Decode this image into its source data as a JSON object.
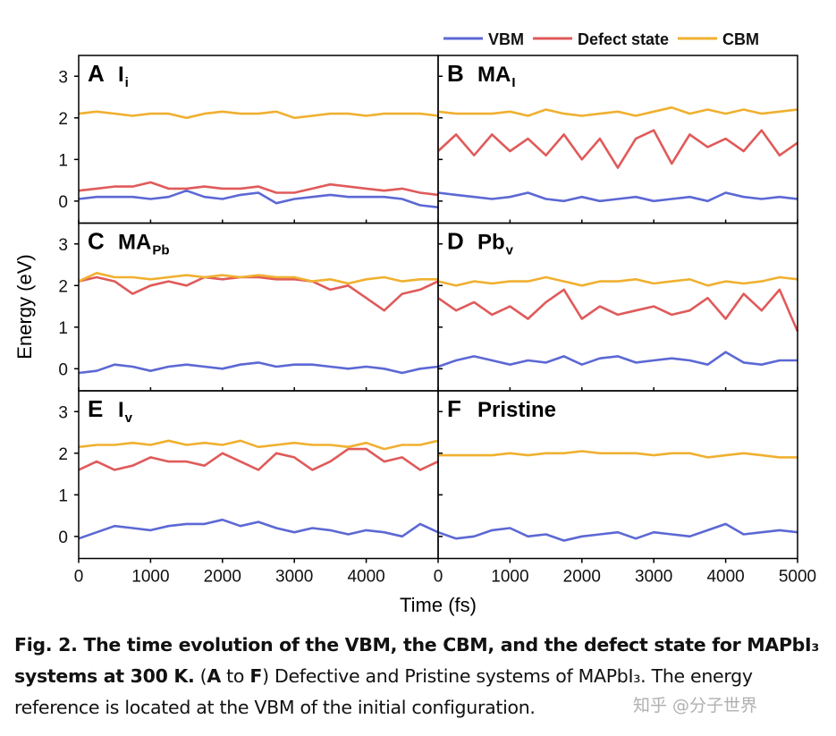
{
  "chart_data": [
    {
      "type": "line",
      "panel": "A",
      "title": "I",
      "subscript": "i",
      "x": [
        0,
        250,
        500,
        750,
        1000,
        1250,
        1500,
        1750,
        2000,
        2250,
        2500,
        2750,
        3000,
        3250,
        3500,
        3750,
        4000,
        4250,
        4500,
        4750,
        5000
      ],
      "xlim": [
        0,
        5000
      ],
      "xticks": [
        0,
        1000,
        2000,
        3000,
        4000
      ],
      "ylim": [
        -0.53,
        3.5
      ],
      "yticks": [
        0,
        1,
        2,
        3
      ],
      "series": [
        {
          "name": "VBM",
          "color": "#5c68d4",
          "values": [
            0.05,
            0.1,
            0.1,
            0.1,
            0.05,
            0.1,
            0.25,
            0.1,
            0.05,
            0.15,
            0.2,
            -0.05,
            0.05,
            0.1,
            0.15,
            0.1,
            0.1,
            0.1,
            0.05,
            -0.1,
            -0.15
          ]
        },
        {
          "name": "Defect state",
          "color": "#e05a5a",
          "values": [
            0.25,
            0.3,
            0.35,
            0.35,
            0.45,
            0.3,
            0.3,
            0.35,
            0.3,
            0.3,
            0.35,
            0.2,
            0.2,
            0.3,
            0.4,
            0.35,
            0.3,
            0.25,
            0.3,
            0.2,
            0.15
          ]
        },
        {
          "name": "CBM",
          "color": "#f0b030",
          "values": [
            2.1,
            2.15,
            2.1,
            2.05,
            2.1,
            2.1,
            2.0,
            2.1,
            2.15,
            2.1,
            2.1,
            2.15,
            2.0,
            2.05,
            2.1,
            2.1,
            2.05,
            2.1,
            2.1,
            2.1,
            2.05
          ]
        }
      ]
    },
    {
      "type": "line",
      "panel": "B",
      "title": "MA",
      "subscript": "I",
      "x": [
        0,
        250,
        500,
        750,
        1000,
        1250,
        1500,
        1750,
        2000,
        2250,
        2500,
        2750,
        3000,
        3250,
        3500,
        3750,
        4000,
        4250,
        4500,
        4750,
        5000
      ],
      "xlim": [
        0,
        5000
      ],
      "xticks": [
        0,
        1000,
        2000,
        3000,
        4000,
        5000
      ],
      "ylim": [
        -0.53,
        3.5
      ],
      "yticks": [
        0,
        1,
        2,
        3
      ],
      "series": [
        {
          "name": "VBM",
          "color": "#5c68d4",
          "values": [
            0.2,
            0.15,
            0.1,
            0.05,
            0.1,
            0.2,
            0.05,
            0.0,
            0.1,
            0.0,
            0.05,
            0.1,
            0.0,
            0.05,
            0.1,
            0.0,
            0.2,
            0.1,
            0.05,
            0.1,
            0.05
          ]
        },
        {
          "name": "Defect state",
          "color": "#e05a5a",
          "values": [
            1.2,
            1.6,
            1.1,
            1.6,
            1.2,
            1.5,
            1.1,
            1.6,
            1.0,
            1.5,
            0.8,
            1.5,
            1.7,
            0.9,
            1.6,
            1.3,
            1.5,
            1.2,
            1.7,
            1.1,
            1.4
          ]
        },
        {
          "name": "CBM",
          "color": "#f0b030",
          "values": [
            2.15,
            2.1,
            2.1,
            2.1,
            2.15,
            2.05,
            2.2,
            2.1,
            2.05,
            2.1,
            2.15,
            2.05,
            2.15,
            2.25,
            2.1,
            2.2,
            2.1,
            2.2,
            2.1,
            2.15,
            2.2
          ]
        }
      ]
    },
    {
      "type": "line",
      "panel": "C",
      "title": "MA",
      "subscript": "Pb",
      "x": [
        0,
        250,
        500,
        750,
        1000,
        1250,
        1500,
        1750,
        2000,
        2250,
        2500,
        2750,
        3000,
        3250,
        3500,
        3750,
        4000,
        4250,
        4500,
        4750,
        5000
      ],
      "xlim": [
        0,
        5000
      ],
      "xticks": [
        0,
        1000,
        2000,
        3000,
        4000
      ],
      "ylim": [
        -0.53,
        3.5
      ],
      "yticks": [
        0,
        1,
        2,
        3
      ],
      "series": [
        {
          "name": "VBM",
          "color": "#5c68d4",
          "values": [
            -0.1,
            -0.05,
            0.1,
            0.05,
            -0.05,
            0.05,
            0.1,
            0.05,
            0.0,
            0.1,
            0.15,
            0.05,
            0.1,
            0.1,
            0.05,
            0.0,
            0.05,
            0.0,
            -0.1,
            0.0,
            0.05
          ]
        },
        {
          "name": "Defect state",
          "color": "#e05a5a",
          "values": [
            2.1,
            2.2,
            2.1,
            1.8,
            2.0,
            2.1,
            2.0,
            2.2,
            2.15,
            2.2,
            2.2,
            2.15,
            2.15,
            2.1,
            1.9,
            2.0,
            1.7,
            1.4,
            1.8,
            1.9,
            2.1
          ]
        },
        {
          "name": "CBM",
          "color": "#f0b030",
          "values": [
            2.1,
            2.3,
            2.2,
            2.2,
            2.15,
            2.2,
            2.25,
            2.2,
            2.25,
            2.2,
            2.25,
            2.2,
            2.2,
            2.1,
            2.15,
            2.05,
            2.15,
            2.2,
            2.1,
            2.15,
            2.15
          ]
        }
      ]
    },
    {
      "type": "line",
      "panel": "D",
      "title": "Pb",
      "subscript": "v",
      "x": [
        0,
        250,
        500,
        750,
        1000,
        1250,
        1500,
        1750,
        2000,
        2250,
        2500,
        2750,
        3000,
        3250,
        3500,
        3750,
        4000,
        4250,
        4500,
        4750,
        5000
      ],
      "xlim": [
        0,
        5000
      ],
      "xticks": [
        0,
        1000,
        2000,
        3000,
        4000,
        5000
      ],
      "ylim": [
        -0.53,
        3.5
      ],
      "yticks": [
        0,
        1,
        2,
        3
      ],
      "series": [
        {
          "name": "VBM",
          "color": "#5c68d4",
          "values": [
            0.05,
            0.2,
            0.3,
            0.2,
            0.1,
            0.2,
            0.15,
            0.3,
            0.1,
            0.25,
            0.3,
            0.15,
            0.2,
            0.25,
            0.2,
            0.1,
            0.4,
            0.15,
            0.1,
            0.2,
            0.2
          ]
        },
        {
          "name": "Defect state",
          "color": "#e05a5a",
          "values": [
            1.7,
            1.4,
            1.6,
            1.3,
            1.5,
            1.2,
            1.6,
            1.9,
            1.2,
            1.5,
            1.3,
            1.4,
            1.5,
            1.3,
            1.4,
            1.7,
            1.2,
            1.8,
            1.4,
            1.9,
            0.9
          ]
        },
        {
          "name": "CBM",
          "color": "#f0b030",
          "values": [
            2.1,
            2.0,
            2.1,
            2.05,
            2.1,
            2.1,
            2.2,
            2.1,
            2.0,
            2.1,
            2.1,
            2.15,
            2.05,
            2.1,
            2.15,
            2.0,
            2.1,
            2.05,
            2.1,
            2.2,
            2.15
          ]
        }
      ]
    },
    {
      "type": "line",
      "panel": "E",
      "title": "I",
      "subscript": "v",
      "x": [
        0,
        250,
        500,
        750,
        1000,
        1250,
        1500,
        1750,
        2000,
        2250,
        2500,
        2750,
        3000,
        3250,
        3500,
        3750,
        4000,
        4250,
        4500,
        4750,
        5000
      ],
      "xlim": [
        0,
        5000
      ],
      "xticks": [
        0,
        1000,
        2000,
        3000,
        4000
      ],
      "ylim": [
        -0.53,
        3.5
      ],
      "yticks": [
        0,
        1,
        2,
        3
      ],
      "series": [
        {
          "name": "VBM",
          "color": "#5c68d4",
          "values": [
            -0.05,
            0.1,
            0.25,
            0.2,
            0.15,
            0.25,
            0.3,
            0.3,
            0.4,
            0.25,
            0.35,
            0.2,
            0.1,
            0.2,
            0.15,
            0.05,
            0.15,
            0.1,
            0.0,
            0.3,
            0.1
          ]
        },
        {
          "name": "Defect state",
          "color": "#e05a5a",
          "values": [
            1.6,
            1.8,
            1.6,
            1.7,
            1.9,
            1.8,
            1.8,
            1.7,
            2.0,
            1.8,
            1.6,
            2.0,
            1.9,
            1.6,
            1.8,
            2.1,
            2.1,
            1.8,
            1.9,
            1.6,
            1.8
          ]
        },
        {
          "name": "CBM",
          "color": "#f0b030",
          "values": [
            2.15,
            2.2,
            2.2,
            2.25,
            2.2,
            2.3,
            2.2,
            2.25,
            2.2,
            2.3,
            2.15,
            2.2,
            2.25,
            2.2,
            2.2,
            2.15,
            2.25,
            2.1,
            2.2,
            2.2,
            2.3
          ]
        }
      ]
    },
    {
      "type": "line",
      "panel": "F",
      "title": "Pristine",
      "x": [
        0,
        250,
        500,
        750,
        1000,
        1250,
        1500,
        1750,
        2000,
        2250,
        2500,
        2750,
        3000,
        3250,
        3500,
        3750,
        4000,
        4250,
        4500,
        4750,
        5000
      ],
      "xlim": [
        0,
        5000
      ],
      "xticks": [
        0,
        1000,
        2000,
        3000,
        4000,
        5000
      ],
      "ylim": [
        -0.53,
        3.5
      ],
      "yticks": [
        0,
        1,
        2,
        3
      ],
      "series": [
        {
          "name": "VBM",
          "color": "#5c68d4",
          "values": [
            0.1,
            -0.05,
            0.0,
            0.15,
            0.2,
            0.0,
            0.05,
            -0.1,
            0.0,
            0.05,
            0.1,
            -0.05,
            0.1,
            0.05,
            0.0,
            0.15,
            0.3,
            0.05,
            0.1,
            0.15,
            0.1
          ]
        },
        {
          "name": "CBM",
          "color": "#f0b030",
          "values": [
            1.95,
            1.95,
            1.95,
            1.95,
            2.0,
            1.95,
            2.0,
            2.0,
            2.05,
            2.0,
            2.0,
            2.0,
            1.95,
            2.0,
            2.0,
            1.9,
            1.95,
            2.0,
            1.95,
            1.9,
            1.9
          ]
        }
      ]
    }
  ],
  "axes": {
    "y_label": "Energy (eV)",
    "x_label": "Time (fs)"
  },
  "caption": {
    "bold": "Fig. 2. The time evolution of the VBM, the CBM, and the defect state for MAPbI₃ systems at 300 K.",
    "parts": [
      "(",
      "A",
      " to ",
      "F",
      ") Defective and Pristine systems of MAPbI₃. The energy reference is located at the VBM of the initial configuration."
    ]
  },
  "watermark": "知乎 @分子世界"
}
